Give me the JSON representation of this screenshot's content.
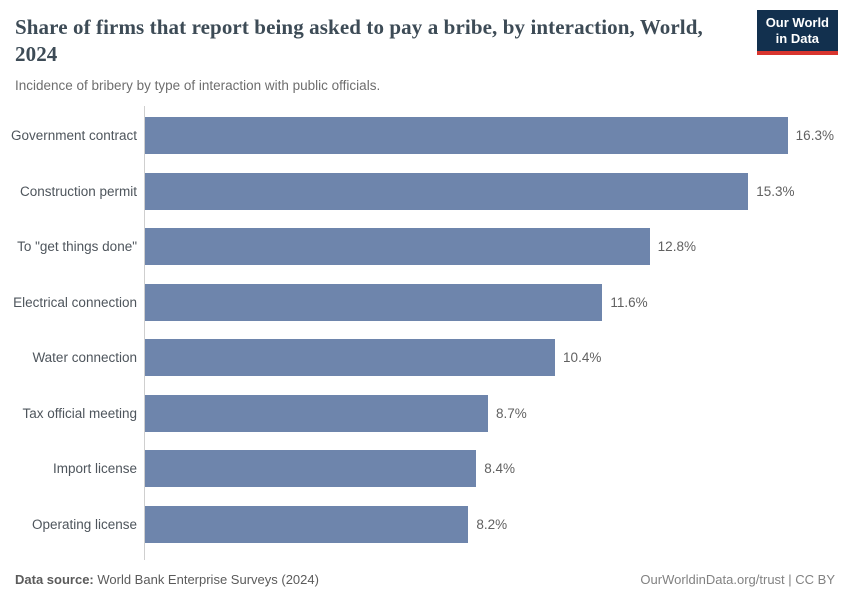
{
  "chart_data": {
    "type": "bar",
    "orientation": "horizontal",
    "title": "Share of firms that report being asked to pay a bribe, by interaction, World, 2024",
    "subtitle": "Incidence of bribery by type of interaction with public officials.",
    "categories": [
      "Government contract",
      "Construction permit",
      "To \"get things done\"",
      "Electrical connection",
      "Water connection",
      "Tax official meeting",
      "Import license",
      "Operating license"
    ],
    "values": [
      16.3,
      15.3,
      12.8,
      11.6,
      10.4,
      8.7,
      8.4,
      8.2
    ],
    "value_suffix": "%",
    "xlabel": "",
    "ylabel": "",
    "xlim": [
      0,
      17.5
    ],
    "grid": false,
    "legend": "none",
    "bar_color": "#6e85ac"
  },
  "logo": {
    "line1": "Our World",
    "line2": "in Data",
    "bg_color": "#12304e",
    "accent_color": "#d8352e"
  },
  "footer": {
    "source_label": "Data source:",
    "source_text": " World Bank Enterprise Surveys (2024)",
    "rights_text": "OurWorldinData.org/trust | CC BY"
  }
}
